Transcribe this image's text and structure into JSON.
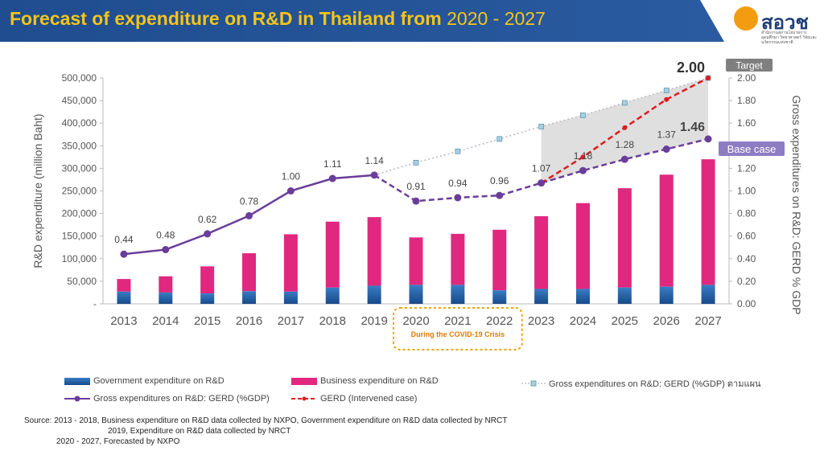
{
  "header": {
    "title_main": "Forecast of expenditure on R&D in Thailand from",
    "title_years": "2020 - 2027",
    "logo_text": "สอวช",
    "logo_sub": "สำนักงานสภานโยบายการอุดมศึกษา วิทยาศาสตร์ วิจัยและนวัตกรรมแห่งชาติ"
  },
  "annotations": {
    "target": "Target",
    "target_value": "2.00",
    "base_case": "Base case",
    "base_value": "1.46",
    "covid": "During the COVID-19 Crisis"
  },
  "legend": {
    "gov": "Government expenditure on R&D",
    "bus": "Business expenditure on R&D",
    "plan": "Gross expenditures on R&D: GERD (%GDP) ตามแผน",
    "gerd": "Gross expenditures on R&D: GERD (%GDP)",
    "intervened": "GERD (Intervened case)"
  },
  "source": {
    "line1": "Source:  2013 - 2018, Business expenditure on R&D data collected by NXPO, Government expenditure on R&D data collected by NRCT",
    "line2": "2019, Expenditure on R&D data collected by NRCT",
    "line3": "2020 - 2027, Forecasted by NXPO"
  },
  "colors": {
    "gov": "#1f5fa8",
    "bus": "#e0287f",
    "gerd": "#6a3d9a",
    "intervened": "#e31a1c",
    "plan": "#a9cfe0",
    "title_bg": "#1f4d8f",
    "title_fg": "#f5c518"
  },
  "chart_data": {
    "type": "bar",
    "categories": [
      "2013",
      "2014",
      "2015",
      "2016",
      "2017",
      "2018",
      "2019",
      "2020",
      "2021",
      "2022",
      "2023",
      "2024",
      "2025",
      "2026",
      "2027"
    ],
    "ylabel": "R&D expenditure (million Baht)",
    "y2label": "Gross expenditures on R&D: GERD % GDP",
    "ylim": [
      0,
      500000
    ],
    "y2lim": [
      0,
      2.0
    ],
    "yticks": [
      "-",
      "50,000",
      "100,000",
      "150,000",
      "200,000",
      "250,000",
      "300,000",
      "350,000",
      "400,000",
      "450,000",
      "500,000"
    ],
    "y2ticks": [
      "0.00",
      "0.20",
      "0.40",
      "0.60",
      "0.80",
      "1.00",
      "1.20",
      "1.40",
      "1.60",
      "1.80",
      "2.00"
    ],
    "series": [
      {
        "name": "Government expenditure on R&D",
        "type": "stacked-bar",
        "values": [
          27000,
          25000,
          23000,
          28000,
          27000,
          36000,
          40000,
          42000,
          42000,
          30000,
          33000,
          33000,
          36000,
          38000,
          42000
        ]
      },
      {
        "name": "Business expenditure on R&D",
        "type": "stacked-bar",
        "values": [
          28000,
          36000,
          60000,
          84000,
          127000,
          146000,
          152000,
          105000,
          113000,
          134000,
          161000,
          190000,
          220000,
          248000,
          278000
        ]
      },
      {
        "name": "Gross expenditures on R&D: GERD (%GDP)",
        "type": "line",
        "values": [
          0.44,
          0.48,
          0.62,
          0.78,
          1.0,
          1.11,
          1.14,
          0.91,
          0.94,
          0.96,
          1.07,
          1.18,
          1.28,
          1.37,
          1.46
        ],
        "labels": [
          "0.44",
          "0.48",
          "0.62",
          "0.78",
          "1.00",
          "1.11",
          "1.14",
          "0.91",
          "0.94",
          "0.96",
          "1.07",
          "1.18",
          "1.28",
          "1.37",
          "1.46"
        ]
      },
      {
        "name": "Gross expenditures on R&D: GERD (%GDP) ตามแผน",
        "type": "dotted-line",
        "x": [
          "2019",
          "2020",
          "2021",
          "2022",
          "2023",
          "2024",
          "2025",
          "2026",
          "2027"
        ],
        "values": [
          1.14,
          1.25,
          1.35,
          1.46,
          1.57,
          1.67,
          1.78,
          1.89,
          2.0
        ]
      },
      {
        "name": "GERD (Intervened case)",
        "type": "dashed-line",
        "x": [
          "2023",
          "2024",
          "2025",
          "2026",
          "2027"
        ],
        "values": [
          1.07,
          1.3,
          1.56,
          1.81,
          2.0
        ]
      }
    ]
  }
}
